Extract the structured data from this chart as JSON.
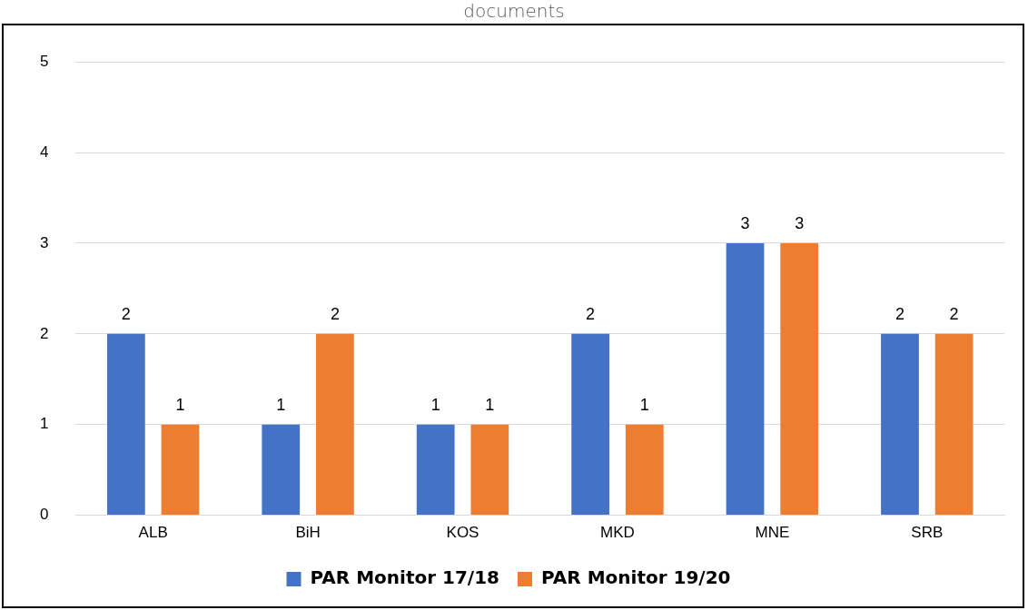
{
  "chart_data": {
    "type": "bar",
    "title": "documents",
    "categories": [
      "ALB",
      "BiH",
      "KOS",
      "MKD",
      "MNE",
      "SRB"
    ],
    "series": [
      {
        "name": "PAR Monitor 17/18",
        "color": "#4472c4",
        "values": [
          2,
          1,
          1,
          2,
          3,
          2
        ]
      },
      {
        "name": "PAR Monitor 19/20",
        "color": "#ed7d31",
        "values": [
          1,
          2,
          1,
          1,
          3,
          2
        ]
      }
    ],
    "ylim": [
      0,
      5
    ],
    "yticks": [
      0,
      1,
      2,
      3,
      4,
      5
    ],
    "grid": "y",
    "legend": "bottom",
    "data_labels": true
  }
}
